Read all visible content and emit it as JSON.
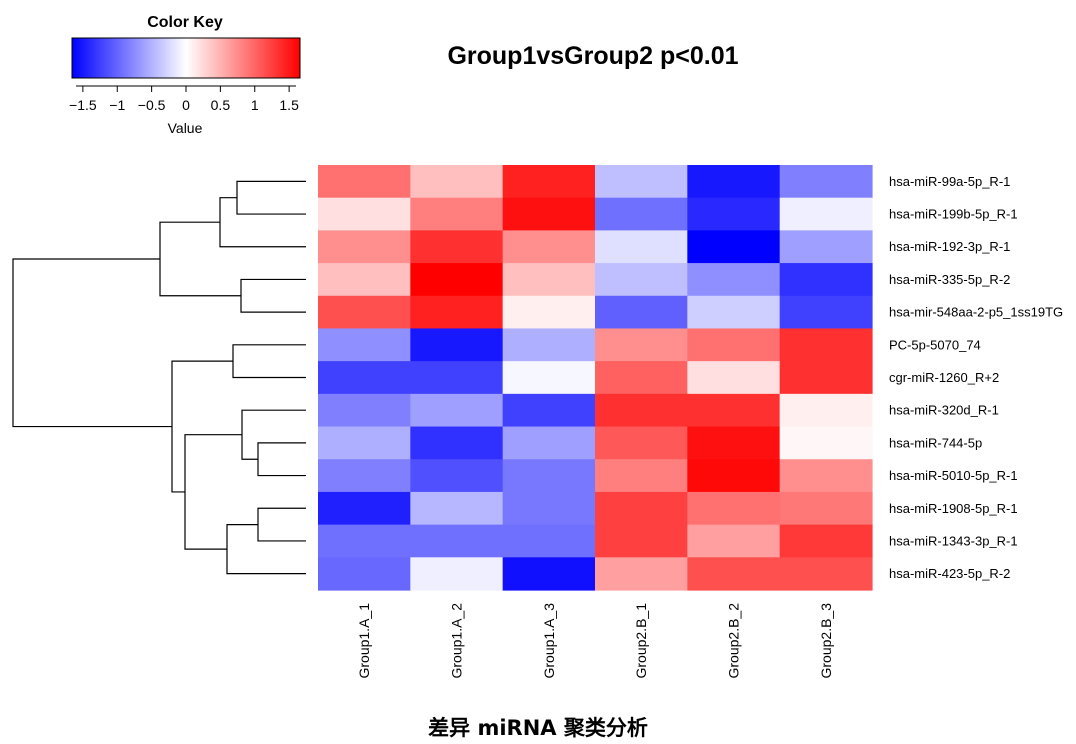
{
  "figure": {
    "title": "Group1vsGroup2 p<0.01",
    "caption": "差异 miRNA 聚类分析"
  },
  "color_key": {
    "title": "Color Key",
    "xlabel": "Value",
    "ticks": [
      -1.5,
      -1,
      -0.5,
      0,
      0.5,
      1,
      1.5
    ],
    "tick_labels": [
      "−1.5",
      "−1",
      "−0.5",
      "0",
      "0.5",
      "1",
      "1.5"
    ],
    "range": [
      -1.6,
      1.6
    ],
    "colors": {
      "low": "#0000ff",
      "mid": "#ffffff",
      "high": "#ff0000"
    }
  },
  "chart_data": {
    "type": "heatmap",
    "title": "Group1vsGroup2 p<0.01",
    "columns": [
      "Group1.A_1",
      "Group1.A_2",
      "Group1.A_3",
      "Group2.B_1",
      "Group2.B_2",
      "Group2.B_3"
    ],
    "rows": [
      "hsa-miR-99a-5p_R-1",
      "hsa-miR-199b-5p_R-1",
      "hsa-miR-192-3p_R-1",
      "hsa-miR-335-5p_R-2",
      "hsa-mir-548aa-2-p5_1ss19TG",
      "PC-5p-5070_74",
      "cgr-miR-1260_R+2",
      "hsa-miR-320d_R-1",
      "hsa-miR-744-5p",
      "hsa-miR-5010-5p_R-1",
      "hsa-miR-1908-5p_R-1",
      "hsa-miR-1343-3p_R-1",
      "hsa-miR-423-5p_R-2"
    ],
    "values": [
      [
        0.9,
        0.4,
        1.4,
        -0.4,
        -1.45,
        -0.8
      ],
      [
        0.2,
        0.8,
        1.5,
        -0.9,
        -1.35,
        -0.1
      ],
      [
        0.7,
        1.3,
        0.7,
        -0.2,
        -1.6,
        -0.6
      ],
      [
        0.4,
        1.6,
        0.4,
        -0.4,
        -0.7,
        -1.3
      ],
      [
        1.1,
        1.4,
        0.1,
        -1.0,
        -0.3,
        -1.2
      ],
      [
        -0.7,
        -1.45,
        -0.5,
        0.7,
        0.9,
        1.3
      ],
      [
        -1.2,
        -1.2,
        -0.05,
        1.0,
        0.2,
        1.3
      ],
      [
        -0.8,
        -0.6,
        -1.2,
        1.3,
        1.3,
        0.1
      ],
      [
        -0.5,
        -1.3,
        -0.6,
        1.05,
        1.5,
        0.05
      ],
      [
        -0.8,
        -1.1,
        -0.85,
        0.8,
        1.55,
        0.7
      ],
      [
        -1.4,
        -0.45,
        -0.85,
        1.2,
        0.9,
        0.85
      ],
      [
        -0.9,
        -0.9,
        -0.9,
        1.2,
        0.6,
        1.25
      ],
      [
        -0.95,
        -0.1,
        -1.5,
        0.6,
        1.1,
        1.1
      ]
    ],
    "value_range": [
      -1.6,
      1.6
    ]
  }
}
